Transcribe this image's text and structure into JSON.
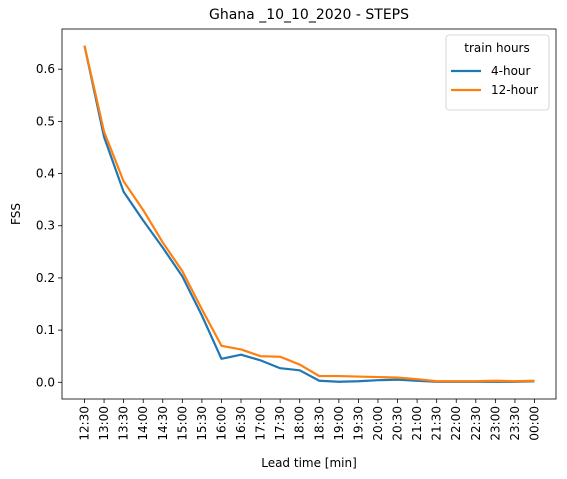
{
  "chart_data": {
    "type": "line",
    "title": "Ghana _10_10_2020 - STEPS",
    "xlabel": "Lead time [min]",
    "ylabel": "FSS",
    "categories": [
      "12:30",
      "13:00",
      "13:30",
      "14:00",
      "14:30",
      "15:00",
      "15:30",
      "16:00",
      "16:30",
      "17:00",
      "17:30",
      "18:00",
      "18:30",
      "19:00",
      "19:30",
      "20:00",
      "20:30",
      "21:00",
      "21:30",
      "22:00",
      "22:30",
      "23:00",
      "23:30",
      "00:00"
    ],
    "yticks": [
      "0.0",
      "0.1",
      "0.2",
      "0.3",
      "0.4",
      "0.5",
      "0.6"
    ],
    "ylim": [
      -0.032,
      0.677
    ],
    "grid": false,
    "legend": {
      "title": "train hours",
      "placement": "top-right"
    },
    "series": [
      {
        "name": "4-hour",
        "color": "#1f77b4",
        "values": [
          0.645,
          0.47,
          0.365,
          0.31,
          0.258,
          0.203,
          0.128,
          0.045,
          0.053,
          0.042,
          0.027,
          0.023,
          0.003,
          0.001,
          0.002,
          0.004,
          0.005,
          0.003,
          0.001,
          0.001,
          0.001,
          0.001,
          0.001,
          0.002
        ]
      },
      {
        "name": "12-hour",
        "color": "#ff7f0e",
        "values": [
          0.645,
          0.48,
          0.385,
          0.33,
          0.268,
          0.213,
          0.14,
          0.07,
          0.063,
          0.05,
          0.049,
          0.034,
          0.012,
          0.012,
          0.011,
          0.01,
          0.009,
          0.006,
          0.002,
          0.002,
          0.002,
          0.003,
          0.002,
          0.003
        ]
      }
    ]
  }
}
